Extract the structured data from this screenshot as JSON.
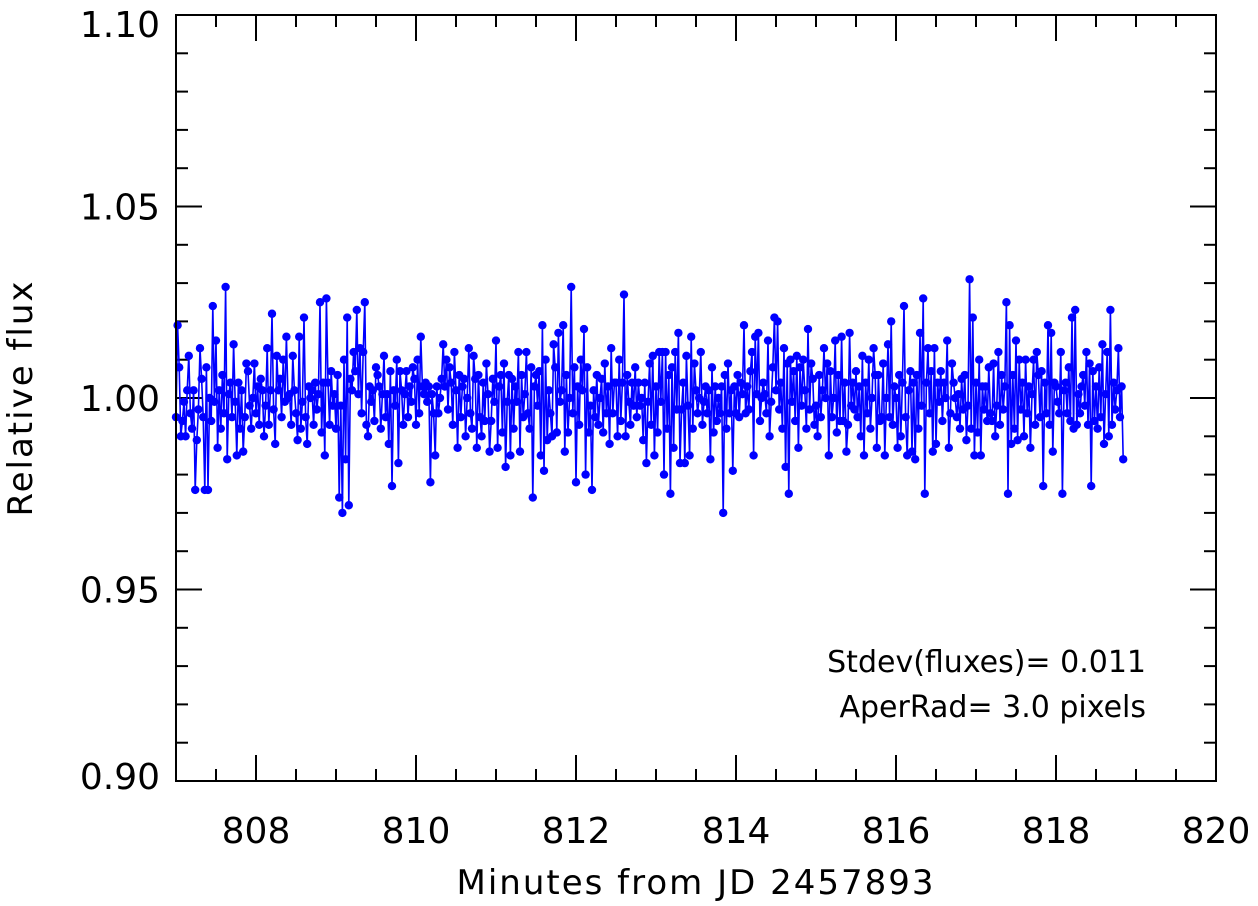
{
  "chart_data": {
    "type": "line",
    "markers": true,
    "xlabel": "Minutes from JD 2457893",
    "ylabel": "Relative flux",
    "xlim": [
      807.0,
      820.0
    ],
    "ylim": [
      0.9,
      1.1
    ],
    "x_ticks": [
      808,
      810,
      812,
      814,
      816,
      818,
      820
    ],
    "x_tick_labels": [
      "808",
      "810",
      "812",
      "814",
      "816",
      "818",
      "820"
    ],
    "y_ticks": [
      0.9,
      0.95,
      1.0,
      1.05,
      1.1
    ],
    "y_tick_labels": [
      "0.90",
      "0.95",
      "1.00",
      "1.05",
      "1.10"
    ],
    "x_minor_step": 0.5,
    "y_minor_step": 0.01,
    "grid": false,
    "series_color": "#0000ff",
    "annotations": [
      "Stdev(fluxes)= 0.011",
      "AperRad= 3.0 pixels"
    ],
    "series": [
      {
        "x_start": 807.0,
        "x_step": 0.02,
        "values": [
          0.995,
          1.019,
          1.008,
          0.99,
          0.994,
          0.999,
          0.99,
          1.002,
          1.011,
          0.996,
          0.992,
          1.002,
          0.976,
          0.989,
          0.997,
          1.013,
          1.005,
          0.995,
          0.976,
          1.008,
          0.976,
          1.0,
          0.994,
          1.024,
          0.999,
          1.015,
          0.987,
          1.002,
          0.992,
          1.006,
          0.996,
          1.029,
          0.984,
          1.001,
          1.004,
          0.995,
          1.014,
          0.999,
          0.985,
          1.004,
          0.992,
          1.002,
          0.986,
          0.995,
          1.009,
          1.007,
          0.998,
          0.992,
          1.0,
          1.009,
          0.996,
          1.003,
          0.993,
          1.005,
          1.002,
          0.99,
          0.998,
          1.013,
          0.993,
          1.002,
          1.022,
          0.997,
          0.988,
          1.011,
          1.002,
          1.005,
          0.995,
          1.01,
          0.999,
          1.016,
          1.0,
          1.001,
          0.993,
          1.011,
          1.002,
          0.996,
          0.989,
          1.016,
          0.992,
          0.999,
          1.021,
          0.995,
          0.988,
          1.003,
          1.0,
          1.002,
          0.993,
          1.004,
          0.997,
          1.001,
          1.025,
          0.991,
          1.004,
          0.985,
          1.026,
          1.004,
          0.993,
          1.007,
          0.998,
          1.001,
          0.992,
          1.006,
          0.974,
          0.998,
          0.97,
          1.01,
          0.984,
          1.021,
          0.972,
          1.005,
          1.002,
          1.012,
          1.007,
          1.023,
          1.001,
          1.013,
          0.996,
          1.012,
          1.025,
          0.993,
          0.99,
          1.003,
          0.999,
          1.002,
          0.994,
          1.008,
          1.006,
          1.003,
          0.992,
          1.001,
          1.011,
          0.995,
          1.001,
          0.988,
          1.007,
          0.977,
          1.002,
          0.998,
          1.01,
          0.983,
          1.007,
          1.002,
          0.993,
          1.001,
          1.007,
          0.995,
          1.003,
          0.999,
          1.008,
          1.005,
          0.993,
          1.01,
          0.996,
          1.016,
          1.003,
          1.001,
          1.004,
          0.999,
          1.003,
          0.978,
          1.001,
          0.996,
          0.985,
          1.003,
          0.996,
          1.0,
          1.005,
          1.014,
          1.003,
          1.01,
          0.997,
          1.008,
          1.004,
          0.993,
          1.012,
          1.002,
          0.987,
          1.006,
          0.995,
          1.003,
          1.005,
          0.99,
          1.0,
          1.013,
          0.996,
          0.992,
          1.011,
          1.005,
          0.987,
          1.006,
          0.995,
          0.99,
          1.004,
          0.994,
          1.009,
          1.001,
          0.986,
          0.994,
          1.005,
          0.999,
          1.015,
          0.987,
          1.003,
          1.006,
          0.991,
          1.009,
          0.982,
          0.999,
          1.006,
          0.985,
          1.005,
          0.992,
          1.003,
          0.999,
          1.012,
          0.986,
          1.006,
          0.995,
          1.001,
          1.012,
          0.996,
          0.992,
          1.008,
          0.974,
          1.003,
          1.006,
          0.998,
          1.007,
          0.985,
          1.019,
          0.981,
          1.01,
          0.989,
          1.002,
          0.996,
          0.99,
          1.014,
          1.008,
          0.991,
          1.017,
          0.999,
          1.002,
          1.019,
          0.986,
          1.006,
          0.991,
          1.0,
          1.029,
          0.996,
          1.008,
          0.978,
          1.003,
          0.993,
          1.01,
          1.002,
          1.018,
          0.98,
          1.008,
          0.991,
          0.998,
          0.976,
          1.002,
          0.995,
          1.006,
          0.993,
          1.0,
          1.005,
          0.991,
          1.009,
          0.996,
          1.003,
          0.988,
          1.013,
          0.996,
          1.004,
          1.004,
          0.99,
          1.01,
          0.994,
          1.004,
          1.027,
          0.99,
          1.006,
          0.999,
          0.993,
          1.004,
          0.998,
          1.008,
          0.995,
          1.004,
          0.998,
          1.0,
          0.989,
          1.004,
          0.983,
          0.999,
          1.009,
          0.993,
          1.011,
          0.985,
          1.003,
          0.991,
          1.012,
          0.999,
          1.012,
          0.98,
          1.012,
          0.992,
          1.006,
          0.975,
          1.008,
          0.987,
          1.012,
          0.997,
          1.017,
          0.983,
          0.997,
          1.004,
          0.983,
          1.011,
          0.998,
          0.985,
          1.016,
          0.992,
          1.009,
          1.002,
          0.996,
          1.0,
          1.012,
          0.993,
          0.999,
          1.003,
          0.996,
          1.002,
          0.984,
          1.008,
          0.991,
          1.003,
          0.994,
          1.0,
          0.996,
          1.003,
          0.97,
          1.006,
          0.992,
          1.009,
          0.996,
          1.002,
          0.981,
          1.003,
          0.996,
          1.006,
          0.995,
          1.004,
          1.001,
          1.019,
          0.996,
          1.003,
          0.997,
          1.007,
          1.012,
          0.985,
          1.016,
          1.001,
          1.017,
          0.994,
          1.0,
          1.004,
          1.001,
          0.996,
          1.015,
          0.99,
          0.999,
          1.008,
          1.021,
          1.002,
          1.02,
          0.997,
          1.004,
          0.992,
          1.013,
          0.982,
          1.009,
          0.975,
          1.01,
          0.999,
          1.007,
          0.994,
          1.011,
          0.987,
          1.008,
          0.998,
          1.01,
          1.002,
          0.992,
          1.018,
          0.997,
          1.009,
          1.005,
          0.993,
          0.998,
          0.99,
          1.006,
          0.995,
          1.002,
          1.013,
          1.0,
          1.009,
          0.985,
          1.007,
          0.995,
          1.0,
          1.015,
          0.991,
          1.006,
          0.994,
          1.016,
          0.994,
          1.004,
          0.986,
          0.993,
          1.017,
          0.998,
          1.004,
          0.997,
          1.007,
          0.995,
          1.003,
          0.99,
          1.011,
          0.985,
          1.004,
          0.996,
          1.01,
          0.992,
          1.0,
          1.013,
          1.006,
          0.987,
          1.006,
          0.994,
          0.995,
          1.009,
          0.985,
          1.0,
          1.014,
          0.995,
          1.02,
          0.993,
          1.003,
          1.0,
          0.987,
          1.006,
          0.99,
          1.004,
          1.024,
          0.995,
          0.985,
          1.002,
          1.007,
          0.986,
          1.004,
          0.984,
          1.006,
          0.992,
          1.017,
          0.998,
          1.026,
          0.975,
          1.004,
          1.013,
          0.996,
          1.007,
          0.986,
          1.013,
          0.988,
          1.004,
          0.999,
          1.007,
          0.994,
          1.004,
          1.0,
          1.015,
          0.987,
          0.996,
          1.009,
          1.004,
          1.0,
          0.995,
          1.001,
          0.992,
          1.005,
          0.997,
          1.006,
          0.989,
          0.998,
          1.031,
          0.992,
          1.021,
          0.985,
          1.004,
          0.991,
          1.01,
          0.985,
          1.003,
          0.997,
          1.003,
          0.994,
          1.008,
          0.996,
          0.994,
          1.009,
          0.99,
          0.998,
          1.012,
          0.993,
          1.006,
          0.997,
          1.003,
          1.025,
          0.975,
          1.019,
          0.988,
          1.006,
          0.992,
          1.015,
          0.989,
          1.01,
          0.997,
          1.004,
          0.99,
          1.01,
          0.996,
          1.003,
          0.987,
          1.001,
          1.01,
          0.993,
          1.012,
          1.006,
          0.995,
          1.007,
          0.977,
          1.004,
          0.996,
          1.019,
          0.993,
          1.017,
          0.986,
          1.004,
          1.003,
          0.999,
          0.996,
          1.012,
          0.975,
          1.002,
          1.004,
          0.996,
          1.008,
          0.994,
          1.021,
          0.992,
          1.023,
          0.993,
          1.001,
          0.996,
          1.003,
          1.006,
          0.998,
          1.012,
          0.993,
          1.009,
          0.977,
          1.007,
          0.994,
          1.003,
          0.992,
          1.008,
          0.995,
          1.014,
          0.988,
          1.001,
          1.012,
          0.99,
          1.023,
          0.993,
          1.004,
          0.997,
          1.002,
          1.013,
          0.995,
          1.003,
          0.984
        ]
      }
    ]
  }
}
